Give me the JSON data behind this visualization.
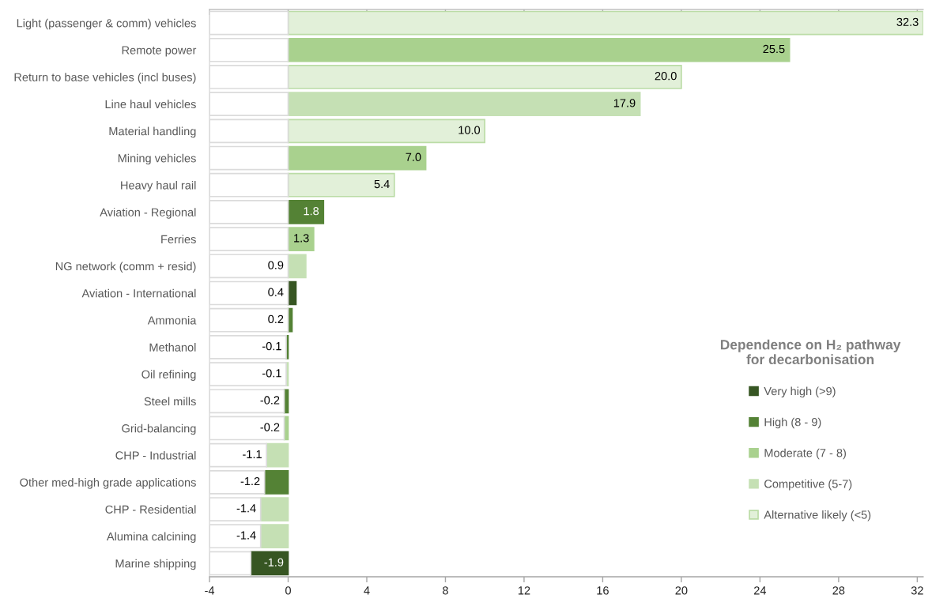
{
  "chart_data": {
    "type": "bar",
    "orientation": "horizontal",
    "stacked": true,
    "categories": [
      "Light (passenger & comm) vehicles",
      "Remote power",
      "Return to base vehicles (incl buses)",
      "Line haul vehicles",
      "Material handling",
      "Mining vehicles",
      "Heavy haul rail",
      "Aviation - Regional",
      "Ferries",
      "NG network (comm + resid)",
      "Aviation - International",
      "Ammonia",
      "Methanol",
      "Oil refining",
      "Steel mills",
      "Grid-balancing",
      "CHP - Industrial",
      "Other med-high grade applications",
      "CHP - Residential",
      "Alumina calcining",
      "Marine shipping"
    ],
    "series": [
      {
        "name": "Very high (>9)",
        "color": "#375623",
        "values": [
          null,
          null,
          null,
          null,
          null,
          null,
          null,
          null,
          null,
          null,
          0.4,
          null,
          null,
          null,
          null,
          null,
          null,
          null,
          null,
          null,
          -1.9
        ],
        "value_labels": [
          null,
          null,
          null,
          null,
          null,
          null,
          null,
          null,
          null,
          null,
          "0.4",
          null,
          null,
          null,
          null,
          null,
          null,
          null,
          null,
          null,
          "-1.9"
        ]
      },
      {
        "name": "High (8 - 9)",
        "color": "#548235",
        "values": [
          null,
          null,
          null,
          null,
          null,
          null,
          null,
          1.8,
          null,
          null,
          null,
          0.2,
          -0.1,
          null,
          -0.2,
          null,
          null,
          -1.2,
          null,
          null,
          null
        ],
        "value_labels": [
          null,
          null,
          null,
          null,
          null,
          null,
          null,
          "1.8",
          null,
          null,
          null,
          "0.2",
          "-0.1",
          null,
          "-0.2",
          null,
          null,
          "-1.2",
          null,
          null,
          null
        ]
      },
      {
        "name": "Moderate (7 - 8)",
        "color": "#a9d18e",
        "values": [
          null,
          25.5,
          null,
          null,
          null,
          7,
          null,
          null,
          1.3,
          null,
          null,
          null,
          null,
          null,
          null,
          -0.2,
          null,
          null,
          null,
          null,
          null
        ],
        "value_labels": [
          null,
          "25.5",
          null,
          null,
          null,
          "7.0",
          null,
          null,
          "1.3",
          null,
          null,
          null,
          null,
          null,
          null,
          "-0.2",
          null,
          null,
          null,
          null,
          null
        ]
      },
      {
        "name": "Competitive (5-7)",
        "color": "#c5e0b4",
        "values": [
          null,
          null,
          null,
          17.9,
          null,
          null,
          null,
          null,
          null,
          0.9,
          null,
          null,
          null,
          -0.1,
          null,
          null,
          -1.1,
          null,
          -1.4,
          -1.4,
          null
        ],
        "value_labels": [
          null,
          null,
          null,
          "17.9",
          null,
          null,
          null,
          null,
          null,
          "0.9",
          null,
          null,
          null,
          "-0.1",
          null,
          null,
          "-1.1",
          null,
          "-1.4",
          "-1.4",
          null
        ]
      },
      {
        "name": "Alternative likely (<5)",
        "color": "#e2f0d9",
        "values": [
          32.3,
          null,
          20,
          null,
          10,
          null,
          5.4,
          null,
          null,
          null,
          null,
          null,
          null,
          null,
          null,
          null,
          null,
          null,
          null,
          null,
          null
        ],
        "value_labels": [
          "32.3",
          null,
          "20.0",
          null,
          "10.0",
          null,
          "5.4",
          null,
          null,
          null,
          null,
          null,
          null,
          null,
          null,
          null,
          null,
          null,
          null,
          null,
          null
        ]
      },
      {
        "color": "#ffffff",
        "values": [
          -4,
          -4,
          -4,
          -4,
          -4,
          -4,
          -4,
          -4,
          -4,
          -4,
          -4,
          -4,
          -3.9,
          -3.9,
          -3.8,
          -3.8,
          -2.9,
          -2.8,
          -2.6,
          -2.6,
          -2.1
        ]
      }
    ],
    "xlim": [
      -4,
      32.3
    ],
    "xticks": [
      -4,
      0,
      4,
      8,
      12,
      16,
      20,
      24,
      28,
      32
    ],
    "legend": "bottom right",
    "legend_title": "Dependence on H₂ pathway\nfor decarbonisation"
  }
}
